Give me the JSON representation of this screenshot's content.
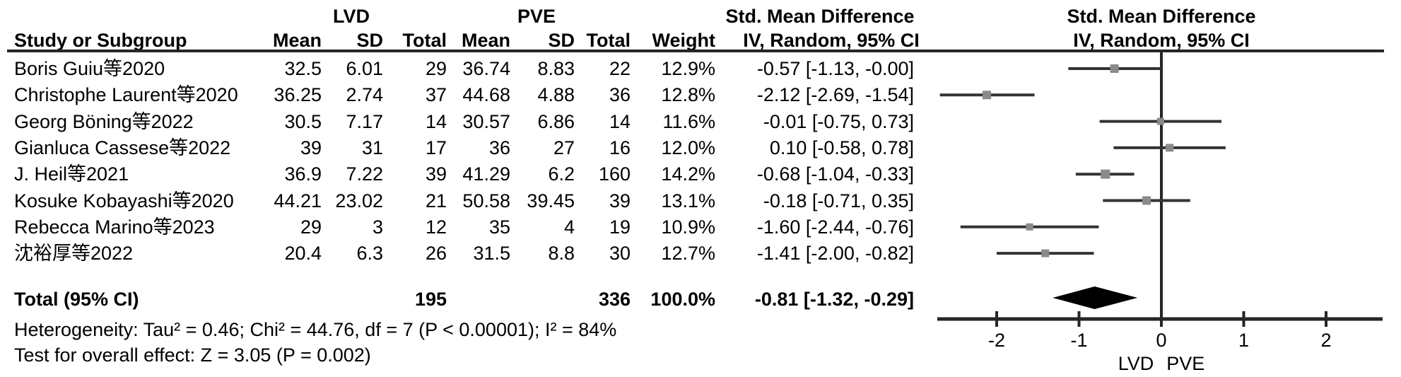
{
  "colors": {
    "text": "#000000",
    "ci_line": "#333333",
    "square": "#8a8a8a",
    "diamond": "#000000",
    "axis": "#262626"
  },
  "chart_data": {
    "type": "forest",
    "headers": {
      "group1": "LVD",
      "group2": "PVE",
      "effect1_line1": "Std. Mean Difference",
      "effect1_line2": "IV, Random, 95% CI",
      "effect2_line1": "Std. Mean Difference",
      "effect2_line2": "IV, Random, 95% CI",
      "cols": [
        "Study or Subgroup",
        "Mean",
        "SD",
        "Total",
        "Mean",
        "SD",
        "Total",
        "Weight"
      ]
    },
    "studies": [
      {
        "name": "Boris Guiu等2020",
        "lvd_mean": "32.5",
        "lvd_sd": "6.01",
        "lvd_total": "29",
        "pve_mean": "36.74",
        "pve_sd": "8.83",
        "pve_total": "22",
        "weight": "12.9%",
        "ci_text": "-0.57 [-1.13, -0.00]",
        "smd": -0.57,
        "low": -1.13,
        "high": 0.0,
        "weight_val": 12.9
      },
      {
        "name": "Christophe Laurent等2020",
        "lvd_mean": "36.25",
        "lvd_sd": "2.74",
        "lvd_total": "37",
        "pve_mean": "44.68",
        "pve_sd": "4.88",
        "pve_total": "36",
        "weight": "12.8%",
        "ci_text": "-2.12 [-2.69, -1.54]",
        "smd": -2.12,
        "low": -2.69,
        "high": -1.54,
        "weight_val": 12.8
      },
      {
        "name": "Georg Böning等2022",
        "lvd_mean": "30.5",
        "lvd_sd": "7.17",
        "lvd_total": "14",
        "pve_mean": "30.57",
        "pve_sd": "6.86",
        "pve_total": "14",
        "weight": "11.6%",
        "ci_text": "-0.01 [-0.75, 0.73]",
        "smd": -0.01,
        "low": -0.75,
        "high": 0.73,
        "weight_val": 11.6
      },
      {
        "name": "Gianluca Cassese等2022",
        "lvd_mean": "39",
        "lvd_sd": "31",
        "lvd_total": "17",
        "pve_mean": "36",
        "pve_sd": "27",
        "pve_total": "16",
        "weight": "12.0%",
        "ci_text": "0.10 [-0.58, 0.78]",
        "smd": 0.1,
        "low": -0.58,
        "high": 0.78,
        "weight_val": 12.0
      },
      {
        "name": "J. Heil等2021",
        "lvd_mean": "36.9",
        "lvd_sd": "7.22",
        "lvd_total": "39",
        "pve_mean": "41.29",
        "pve_sd": "6.2",
        "pve_total": "160",
        "weight": "14.2%",
        "ci_text": "-0.68 [-1.04, -0.33]",
        "smd": -0.68,
        "low": -1.04,
        "high": -0.33,
        "weight_val": 14.2
      },
      {
        "name": "Kosuke Kobayashi等2020",
        "lvd_mean": "44.21",
        "lvd_sd": "23.02",
        "lvd_total": "21",
        "pve_mean": "50.58",
        "pve_sd": "39.45",
        "pve_total": "39",
        "weight": "13.1%",
        "ci_text": "-0.18 [-0.71, 0.35]",
        "smd": -0.18,
        "low": -0.71,
        "high": 0.35,
        "weight_val": 13.1
      },
      {
        "name": "Rebecca Marino等2023",
        "lvd_mean": "29",
        "lvd_sd": "3",
        "lvd_total": "12",
        "pve_mean": "35",
        "pve_sd": "4",
        "pve_total": "19",
        "weight": "10.9%",
        "ci_text": "-1.60 [-2.44, -0.76]",
        "smd": -1.6,
        "low": -2.44,
        "high": -0.76,
        "weight_val": 10.9
      },
      {
        "name": "沈裕厚等2022",
        "lvd_mean": "20.4",
        "lvd_sd": "6.3",
        "lvd_total": "26",
        "pve_mean": "31.5",
        "pve_sd": "8.8",
        "pve_total": "30",
        "weight": "12.7%",
        "ci_text": "-1.41 [-2.00, -0.82]",
        "smd": -1.41,
        "low": -2.0,
        "high": -0.82,
        "weight_val": 12.7
      }
    ],
    "total": {
      "label": "Total (95% CI)",
      "lvd_total": "195",
      "pve_total": "336",
      "weight": "100.0%",
      "ci_text": "-0.81 [-1.32, -0.29]",
      "smd": -0.81,
      "low": -1.32,
      "high": -0.29
    },
    "axis": {
      "ticks": [
        -2,
        -1,
        0,
        1,
        2
      ],
      "min": -2.72,
      "max": 2.69,
      "left_label": "LVD",
      "right_label": "PVE"
    },
    "footer": {
      "heterogeneity": "Heterogeneity: Tau² = 0.46; Chi² = 44.76, df = 7 (P < 0.00001); I² = 84%",
      "overall": "Test for overall effect: Z = 3.05 (P = 0.002)"
    }
  }
}
